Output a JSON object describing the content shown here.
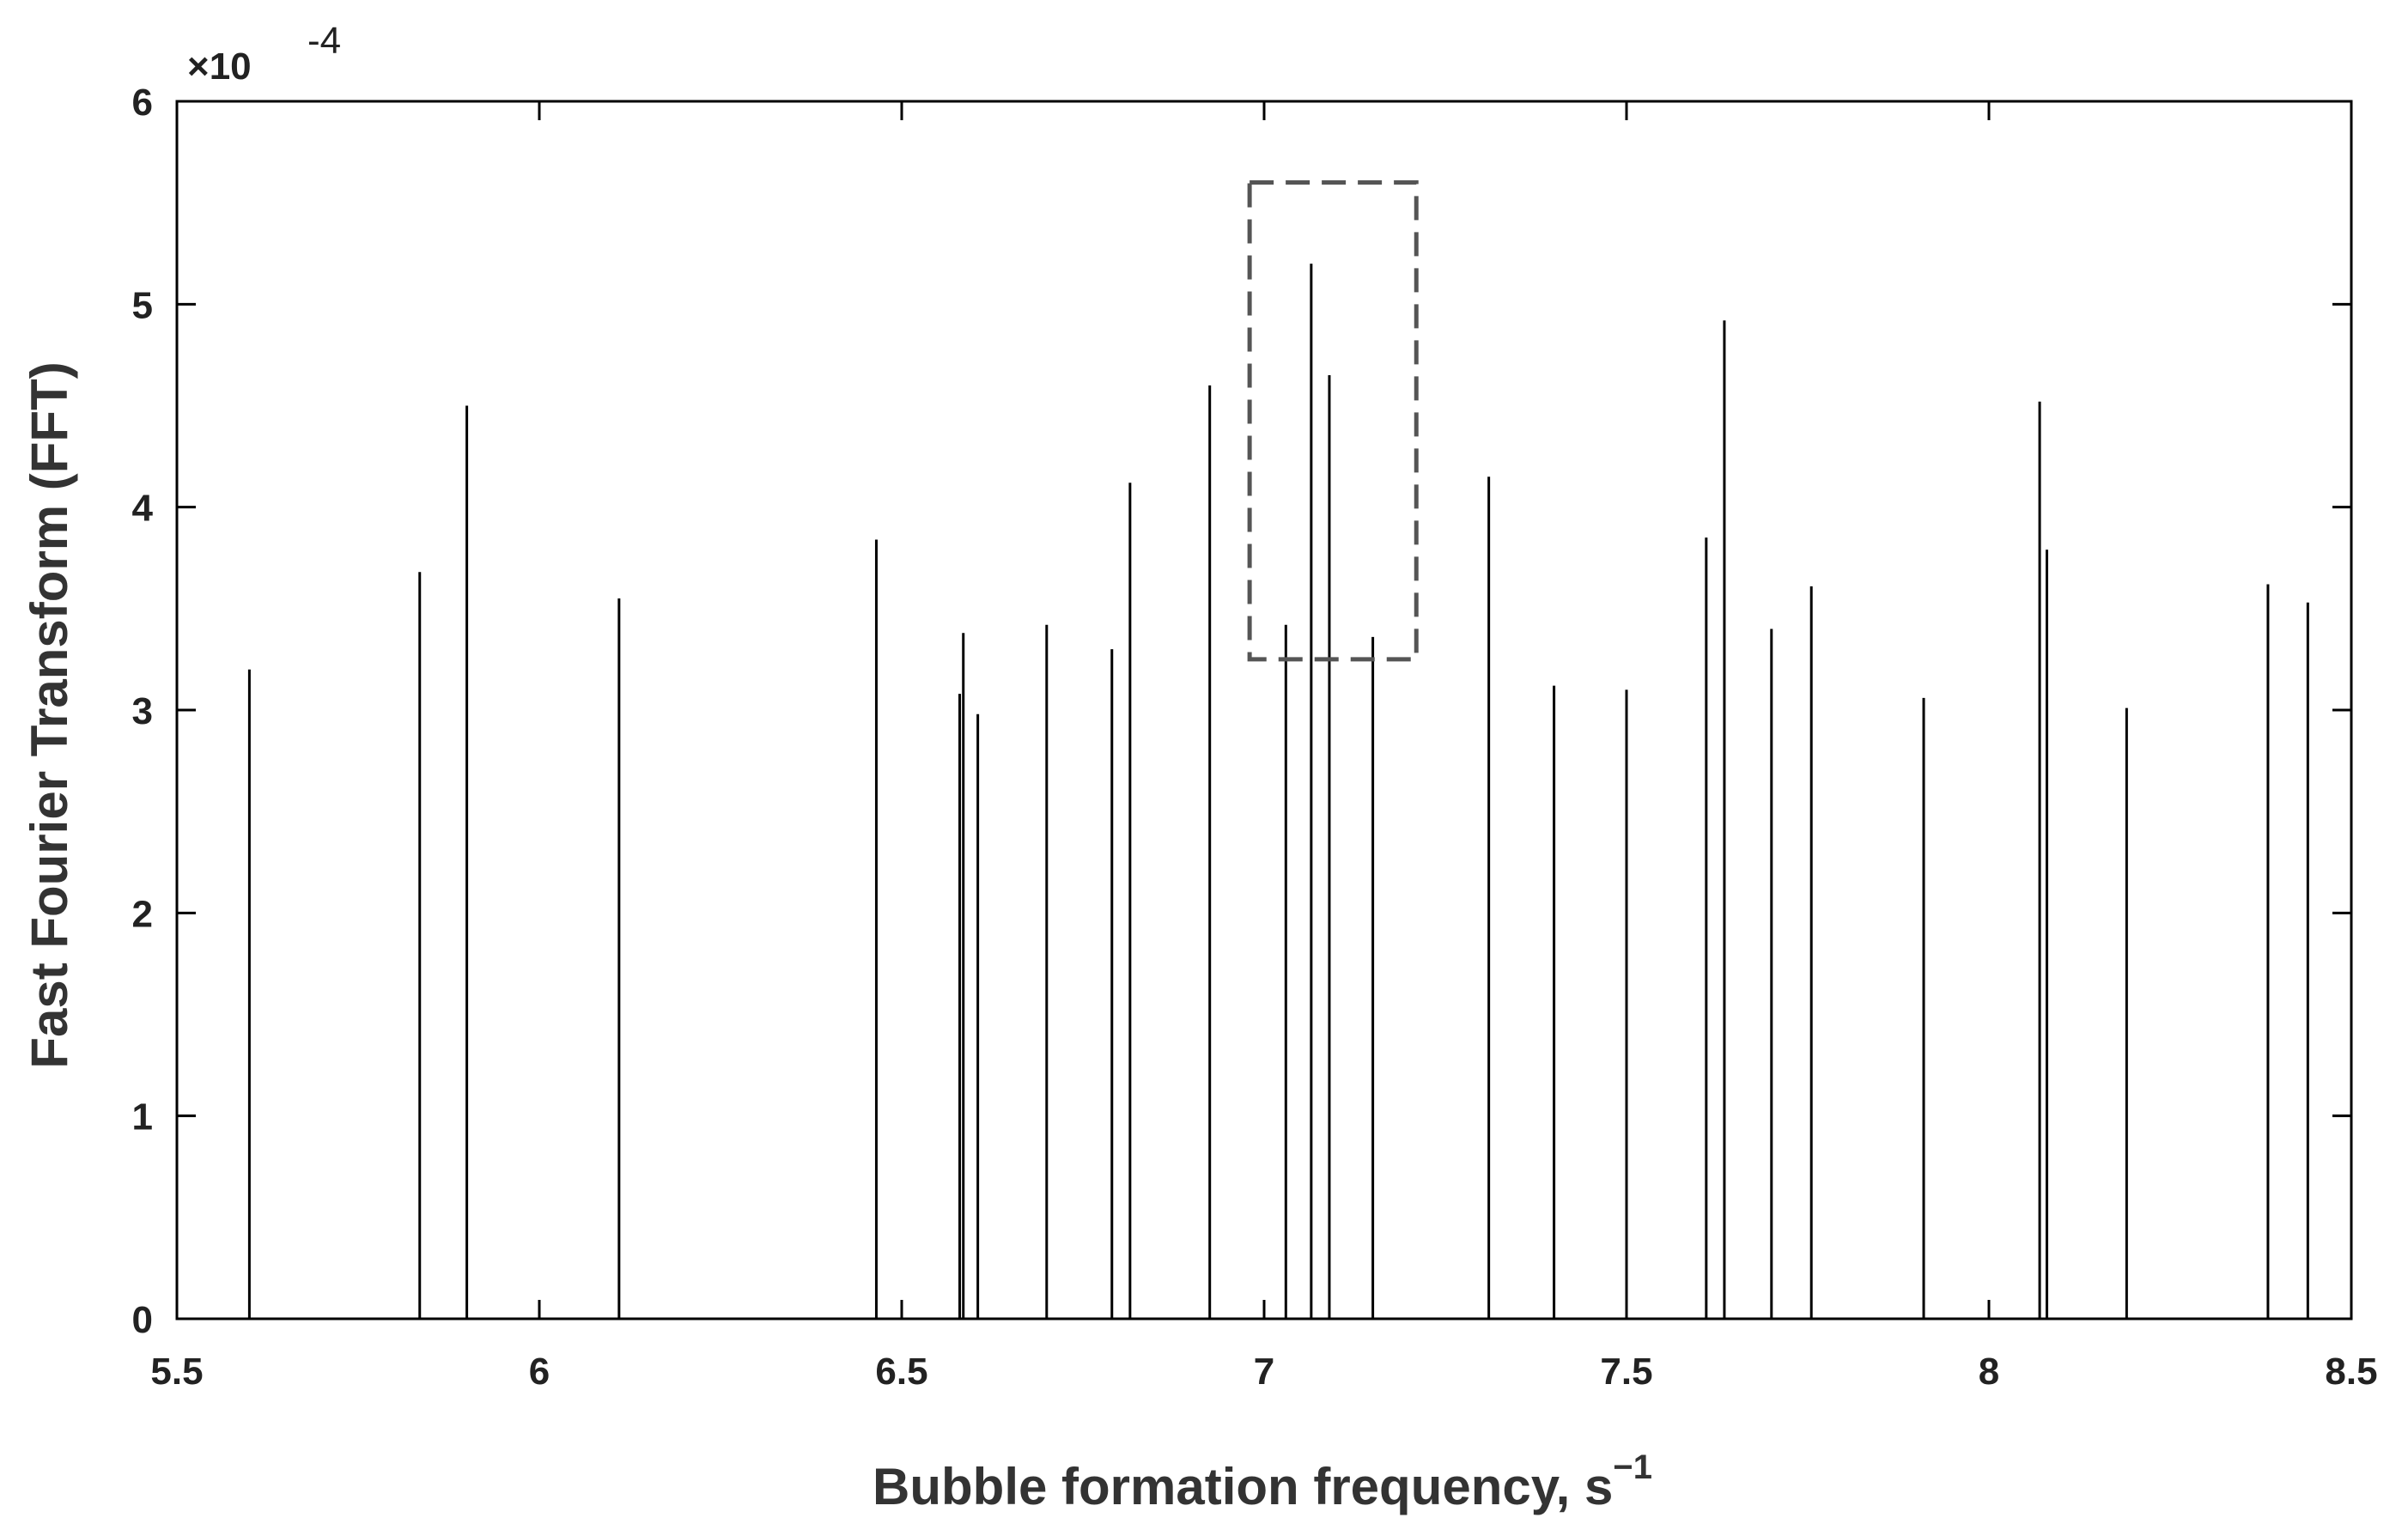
{
  "chart_data": {
    "type": "bar",
    "style": "stem",
    "xlabel": "Bubble formation frequency, s",
    "xlabel_superscript": "−1",
    "ylabel": "Fast Fourier Transform (FFT)",
    "y_multiplier_base": "×10",
    "y_multiplier_exp": "-4",
    "xlim": [
      5.5,
      8.5
    ],
    "ylim": [
      0,
      0.0006
    ],
    "xticks": [
      5.5,
      6,
      6.5,
      7,
      7.5,
      8,
      8.5
    ],
    "xtick_labels": [
      "5.5",
      "6",
      "6.5",
      "7",
      "7.5",
      "8",
      "8.5"
    ],
    "yticks": [
      0,
      1,
      2,
      3,
      4,
      5,
      6
    ],
    "ytick_labels": [
      "0",
      "1",
      "2",
      "3",
      "4",
      "5",
      "6"
    ],
    "bar_color": "#000000",
    "grid": false,
    "highlight_box": {
      "x_range": [
        6.98,
        7.21
      ],
      "y_range": [
        0.000325,
        0.00056
      ],
      "color": "#555555",
      "dash": true
    },
    "peaks": [
      {
        "x": 7.065,
        "y": 0.00052
      },
      {
        "x": 7.635,
        "y": 0.000492
      },
      {
        "x": 7.09,
        "y": 0.000465
      },
      {
        "x": 6.925,
        "y": 0.00046
      },
      {
        "x": 8.07,
        "y": 0.000452
      },
      {
        "x": 5.9,
        "y": 0.00045
      },
      {
        "x": 7.31,
        "y": 0.000415
      },
      {
        "x": 6.815,
        "y": 0.000412
      },
      {
        "x": 7.61,
        "y": 0.000385
      },
      {
        "x": 6.465,
        "y": 0.000384
      },
      {
        "x": 8.08,
        "y": 0.000379
      },
      {
        "x": 5.835,
        "y": 0.000368
      },
      {
        "x": 8.385,
        "y": 0.000362
      },
      {
        "x": 7.755,
        "y": 0.000361
      },
      {
        "x": 6.11,
        "y": 0.000355
      },
      {
        "x": 8.44,
        "y": 0.000353
      },
      {
        "x": 7.7,
        "y": 0.00034
      },
      {
        "x": 7.03,
        "y": 0.000342
      },
      {
        "x": 6.7,
        "y": 0.000342
      },
      {
        "x": 6.585,
        "y": 0.000338
      },
      {
        "x": 7.15,
        "y": 0.000336
      },
      {
        "x": 6.79,
        "y": 0.00033
      },
      {
        "x": 5.6,
        "y": 0.00032
      },
      {
        "x": 7.4,
        "y": 0.000312
      },
      {
        "x": 7.5,
        "y": 0.00031
      },
      {
        "x": 6.58,
        "y": 0.000308
      },
      {
        "x": 7.91,
        "y": 0.000306
      },
      {
        "x": 8.08,
        "y": 0.000305
      },
      {
        "x": 8.19,
        "y": 0.000301
      },
      {
        "x": 6.605,
        "y": 0.000298
      }
    ]
  }
}
